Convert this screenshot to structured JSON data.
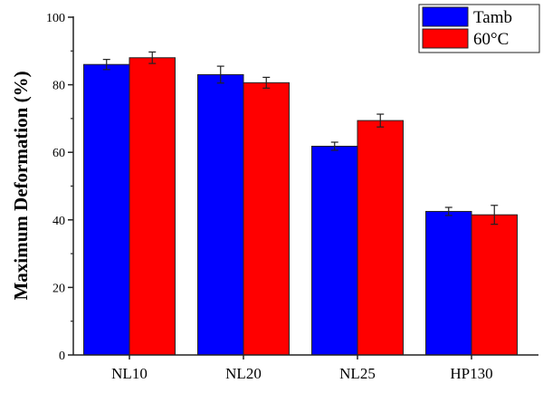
{
  "chart_data": {
    "type": "bar",
    "title": "",
    "xlabel": "",
    "ylabel": "Maximum Deformation (%)",
    "ylim": [
      0,
      100
    ],
    "yticks": [
      0,
      20,
      40,
      60,
      80,
      100
    ],
    "categories": [
      "NL10",
      "NL20",
      "NL25",
      "HP130"
    ],
    "series": [
      {
        "name": "Tamb",
        "color": "#0000ff",
        "values": [
          86,
          83,
          61.8,
          42.5
        ],
        "errors": [
          1.5,
          2.5,
          1.2,
          1.2
        ]
      },
      {
        "name": "60°C",
        "color": "#ff0000",
        "values": [
          88,
          80.6,
          69.4,
          41.5
        ],
        "errors": [
          1.7,
          1.6,
          1.9,
          2.8
        ]
      }
    ],
    "legend": "top-right",
    "grid": false
  }
}
